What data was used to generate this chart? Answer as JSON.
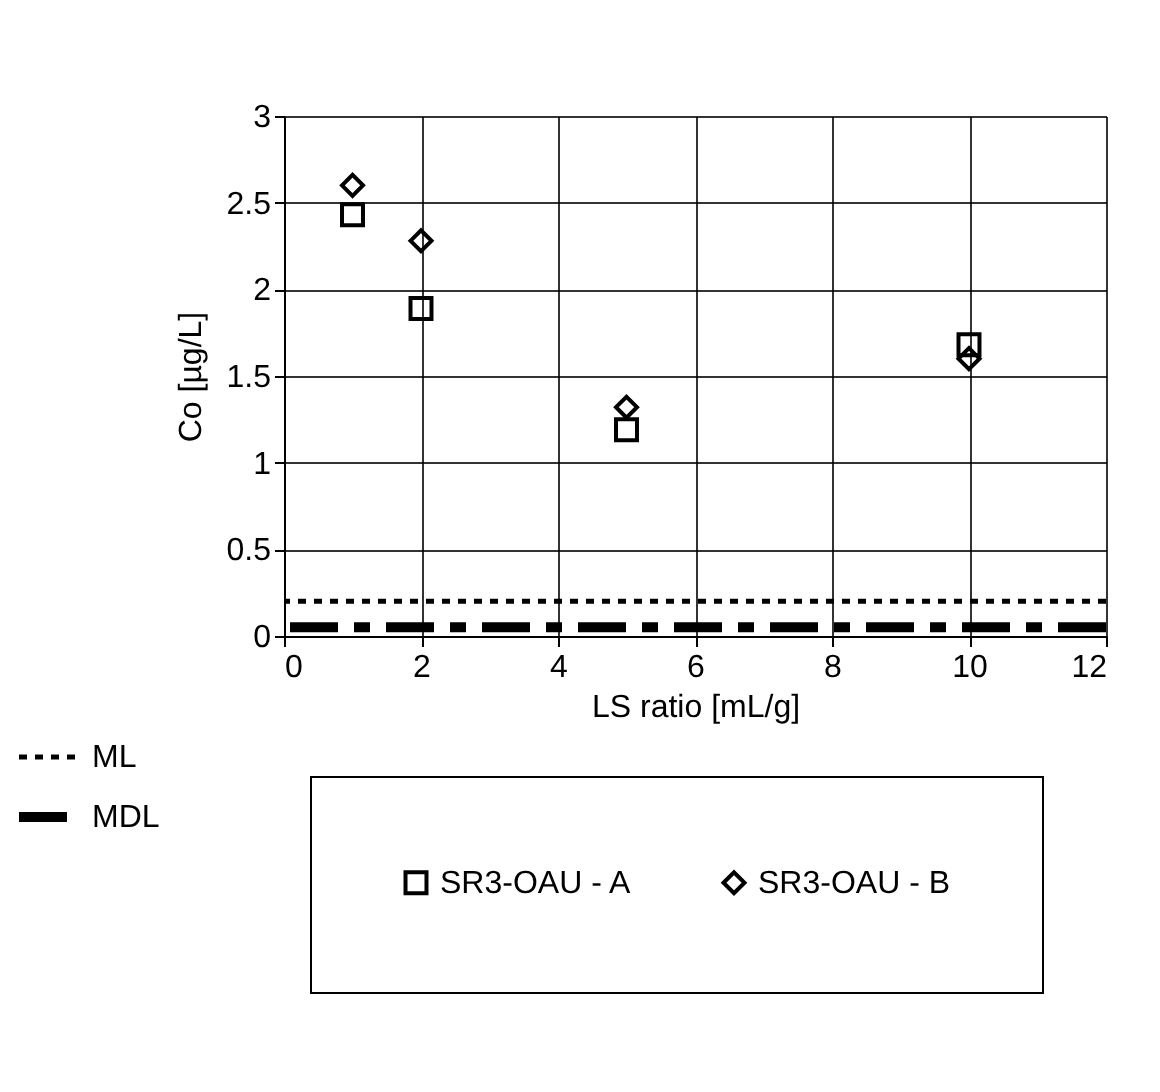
{
  "chart_data": {
    "type": "scatter",
    "xlabel": "LS ratio [mL/g]",
    "ylabel": "Co [µg/L]",
    "xlim": [
      0,
      12
    ],
    "xticks": [
      0,
      2,
      4,
      6,
      8,
      10,
      12
    ],
    "ylim": [
      0,
      3
    ],
    "yticks": [
      0,
      0.5,
      1,
      1.5,
      2,
      2.5,
      3
    ],
    "x": [
      1,
      2,
      5,
      10
    ],
    "series": [
      {
        "name": "SR3-OAU - A",
        "color": "#000000",
        "marker": "square",
        "values": [
          2.43,
          1.89,
          1.19,
          1.68
        ]
      },
      {
        "name": "SR3-OAU - B",
        "color": "#000000",
        "marker": "diamond",
        "values": [
          2.6,
          2.28,
          1.32,
          1.6
        ]
      }
    ],
    "ref_lines": [
      {
        "axis": "y",
        "value": 0.2,
        "label": "ML",
        "line_style": "dotted",
        "color": "#000000"
      },
      {
        "axis": "y",
        "value": 0.05,
        "label": "MDL",
        "line_style": "dashed",
        "color": "#000000"
      }
    ],
    "grid": true,
    "legend": "bottom"
  }
}
